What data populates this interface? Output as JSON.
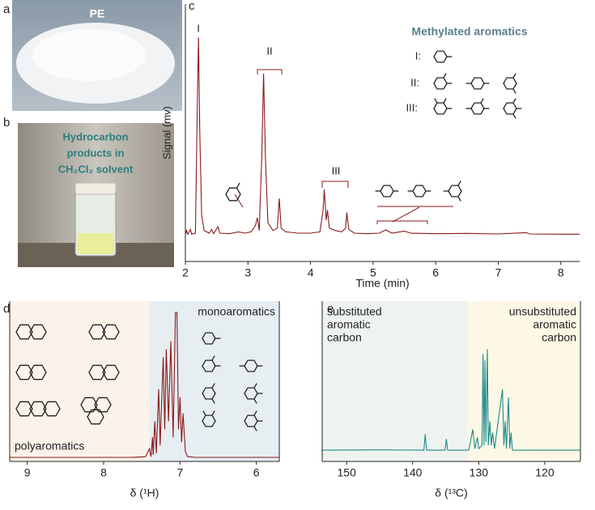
{
  "panels": {
    "a": {
      "label": "a",
      "caption": [
        "PE"
      ]
    },
    "b": {
      "label": "b",
      "caption": [
        "Hydrocarbon",
        "products in",
        "CH₂Cl₂ solvent"
      ]
    }
  },
  "chart_data": [
    {
      "type": "line",
      "label": "c",
      "xlabel": "Time (min)",
      "ylabel": "Signal (mv)",
      "xlim": [
        2,
        8.3
      ],
      "xticks": [
        2,
        3,
        4,
        5,
        6,
        7,
        8
      ],
      "ylim": [
        0,
        100
      ],
      "x": [
        2.0,
        2.02,
        2.04,
        2.08,
        2.1,
        2.16,
        2.19,
        2.21,
        2.23,
        2.26,
        2.3,
        2.38,
        2.42,
        2.45,
        2.52,
        2.55,
        2.7,
        2.85,
        2.95,
        3.05,
        3.12,
        3.15,
        3.18,
        3.22,
        3.25,
        3.28,
        3.32,
        3.4,
        3.47,
        3.5,
        3.53,
        3.6,
        3.8,
        4.0,
        4.15,
        4.2,
        4.22,
        4.25,
        4.27,
        4.3,
        4.4,
        4.5,
        4.56,
        4.58,
        4.61,
        4.7,
        4.9,
        5.1,
        5.2,
        5.3,
        5.5,
        5.6,
        6.0,
        6.5,
        7.0,
        7.45,
        7.5,
        8.0,
        8.3
      ],
      "series": [
        {
          "color": "#8b1a1a",
          "values": [
            10.5,
            12,
            10.5,
            12.5,
            10.6,
            11,
            60,
            87,
            50,
            18,
            12,
            11,
            12.5,
            10.8,
            13.5,
            11,
            10.8,
            11.5,
            11,
            11.5,
            14,
            17,
            12,
            40,
            73,
            40,
            15,
            12,
            13,
            24.5,
            13,
            11.5,
            11,
            11,
            11.5,
            20,
            28,
            16,
            20,
            13,
            12,
            11.5,
            13,
            19,
            12.5,
            11,
            10.8,
            11,
            12.3,
            11,
            11.8,
            11,
            10.8,
            10.9,
            10.7,
            11.2,
            10.7,
            10.6,
            10.6
          ]
        }
      ],
      "peak_labels": [
        "I",
        "II",
        "III"
      ],
      "legend_title": "Methylated aromatics",
      "legend_rows": [
        "I:",
        "II:",
        "III:"
      ]
    },
    {
      "type": "line",
      "label": "d",
      "xlabel": "δ (¹H)",
      "xlim": [
        9.23,
        5.7
      ],
      "xticks": [
        9,
        8,
        7,
        6
      ],
      "ylim": [
        0,
        100
      ],
      "regions": [
        {
          "label": [
            "polyaromatics"
          ],
          "range": [
            9.23,
            7.4
          ],
          "color": "#fbf2ea"
        },
        {
          "label": [
            "monoaromatics"
          ],
          "range": [
            7.4,
            5.7
          ],
          "color": "#e6eef2"
        }
      ],
      "x": [
        9.23,
        8.0,
        7.6,
        7.45,
        7.4,
        7.38,
        7.36,
        7.35,
        7.33,
        7.31,
        7.28,
        7.26,
        7.22,
        7.2,
        7.18,
        7.15,
        7.12,
        7.09,
        7.06,
        7.04,
        7.02,
        7.0,
        6.98,
        6.96,
        6.93,
        6.9,
        6.8,
        5.7
      ],
      "series": [
        {
          "color": "#8b1a1a",
          "values": [
            2.5,
            2.5,
            2.6,
            3,
            8,
            3,
            15,
            4,
            25,
            5,
            45,
            10,
            65,
            20,
            70,
            25,
            75,
            15,
            93,
            93,
            20,
            40,
            12,
            30,
            6,
            3,
            2.5,
            2.5
          ]
        }
      ]
    },
    {
      "type": "line",
      "label": "e",
      "xlabel": "δ (¹³C)",
      "xlim": [
        153.7,
        114.6
      ],
      "xticks": [
        150,
        140,
        130,
        120
      ],
      "ylim": [
        0,
        100
      ],
      "regions": [
        {
          "label": [
            "substituted",
            "aromatic",
            "carbon"
          ],
          "range": [
            153.7,
            131.7
          ],
          "color": "#eef3ef"
        },
        {
          "label": [
            "unsubstituted",
            "aromatic",
            "carbon"
          ],
          "range": [
            131.7,
            114.6
          ],
          "color": "#fdf8e6"
        }
      ],
      "x": [
        153.7,
        145,
        138.3,
        138.1,
        137.9,
        135.1,
        134.9,
        134.7,
        131.5,
        130.9,
        130.6,
        130.2,
        130,
        129.5,
        129.35,
        129.2,
        129.05,
        128.9,
        128.7,
        128.55,
        128.3,
        128.1,
        127.9,
        127.6,
        126.4,
        126.2,
        126.0,
        125.8,
        125.5,
        125.3,
        125.1,
        124.9,
        120,
        114.6
      ],
      "series": [
        {
          "color": "#1f8a8a",
          "values": [
            7,
            7.2,
            7,
            17,
            7,
            7,
            14,
            7,
            7,
            20,
            8,
            15,
            8,
            10,
            67,
            10,
            63,
            12,
            70,
            10,
            25,
            10,
            18,
            8,
            45,
            10,
            25,
            8,
            40,
            8,
            18,
            7,
            7,
            7
          ]
        }
      ]
    }
  ]
}
